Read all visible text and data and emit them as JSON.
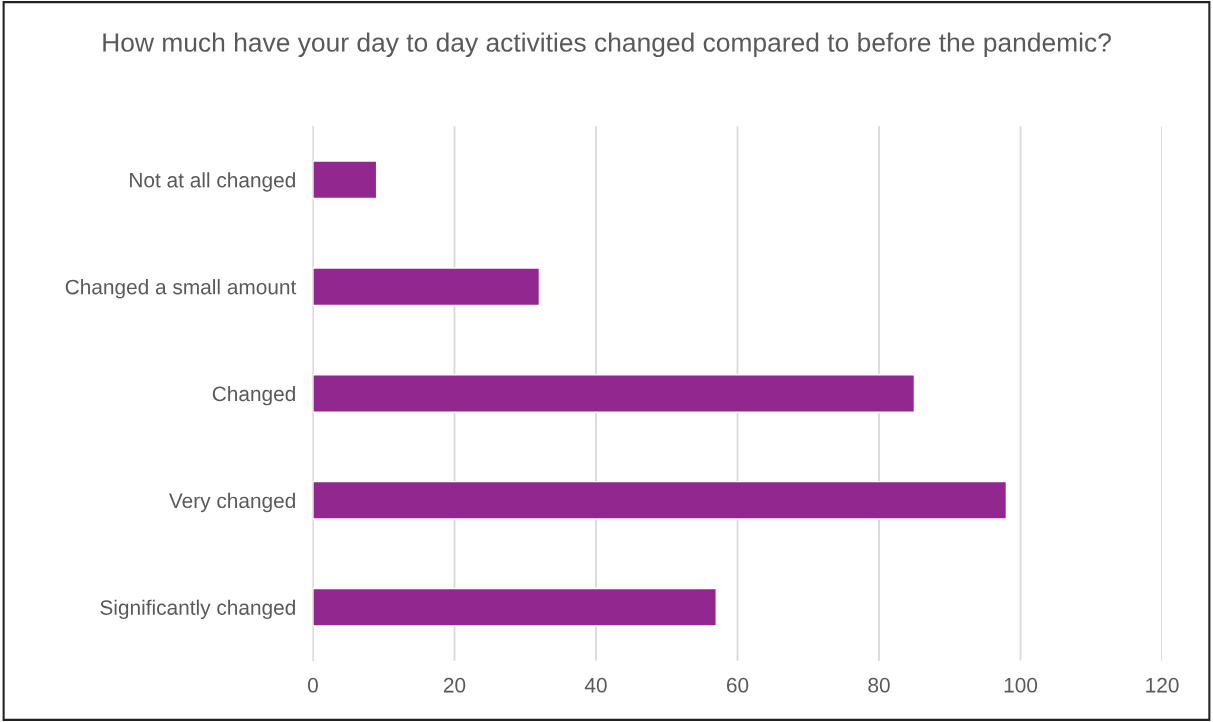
{
  "chart_data": {
    "type": "bar",
    "orientation": "horizontal",
    "title": "How much have your day to day activities changed compared to before the pandemic?",
    "categories": [
      "Not at all changed",
      "Changed a small amount",
      "Changed",
      "Very changed",
      "Significantly changed"
    ],
    "values": [
      9,
      32,
      85,
      98,
      57
    ],
    "color": "#92278f",
    "xlim": [
      0,
      120
    ],
    "xticks": [
      0,
      20,
      40,
      60,
      80,
      100,
      120
    ],
    "grid": "x"
  }
}
